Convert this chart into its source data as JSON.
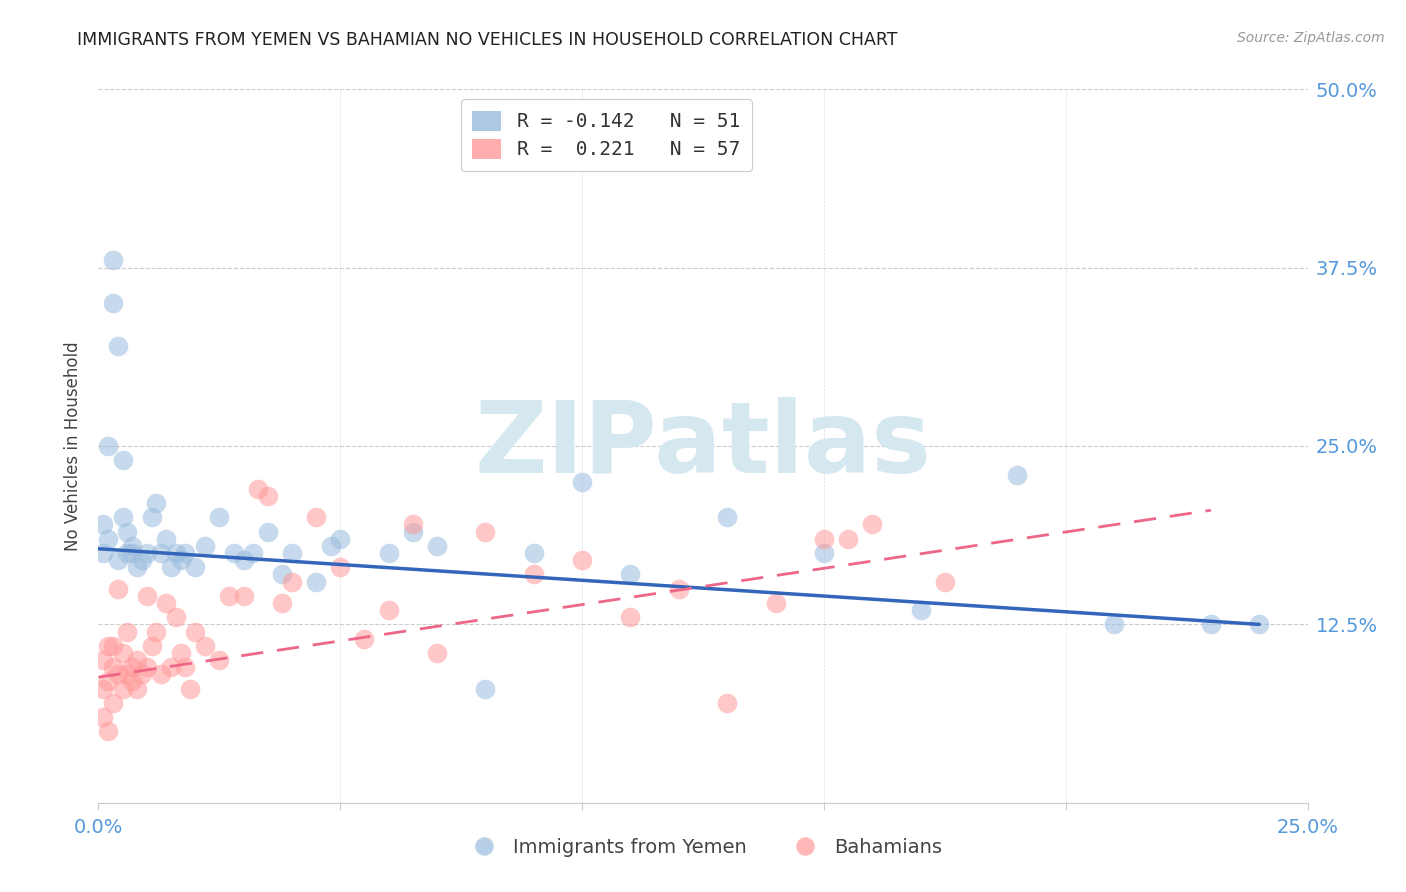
{
  "title": "IMMIGRANTS FROM YEMEN VS BAHAMIAN NO VEHICLES IN HOUSEHOLD CORRELATION CHART",
  "source": "Source: ZipAtlas.com",
  "ylabel": "No Vehicles in Household",
  "legend_label1": "Immigrants from Yemen",
  "legend_label2": "Bahamians",
  "r1": -0.142,
  "n1": 51,
  "r2": 0.221,
  "n2": 57,
  "xlim": [
    0.0,
    0.25
  ],
  "ylim": [
    0.0,
    0.5
  ],
  "x_ticks": [
    0.0,
    0.05,
    0.1,
    0.15,
    0.2,
    0.25
  ],
  "x_tick_labels": [
    "0.0%",
    "",
    "",
    "",
    "",
    "25.0%"
  ],
  "y_ticks": [
    0.0,
    0.125,
    0.25,
    0.375,
    0.5
  ],
  "y_tick_labels": [
    "",
    "12.5%",
    "25.0%",
    "37.5%",
    "50.0%"
  ],
  "color_blue": "#99BBDD",
  "color_pink": "#FF9999",
  "line_color_blue": "#3366BB",
  "line_color_pink": "#EE6688",
  "watermark": "ZIPatlas",
  "watermark_color": "#D5E8F0",
  "background_color": "#FFFFFF",
  "blue_scatter_x": [
    0.001,
    0.001,
    0.002,
    0.002,
    0.003,
    0.003,
    0.004,
    0.004,
    0.005,
    0.005,
    0.006,
    0.006,
    0.007,
    0.007,
    0.008,
    0.009,
    0.01,
    0.011,
    0.012,
    0.013,
    0.014,
    0.015,
    0.016,
    0.017,
    0.018,
    0.02,
    0.022,
    0.025,
    0.028,
    0.03,
    0.032,
    0.035,
    0.038,
    0.04,
    0.045,
    0.048,
    0.05,
    0.06,
    0.065,
    0.07,
    0.08,
    0.09,
    0.1,
    0.11,
    0.13,
    0.15,
    0.17,
    0.19,
    0.21,
    0.23,
    0.24
  ],
  "blue_scatter_y": [
    0.175,
    0.195,
    0.185,
    0.25,
    0.35,
    0.38,
    0.32,
    0.17,
    0.24,
    0.2,
    0.175,
    0.19,
    0.18,
    0.175,
    0.165,
    0.17,
    0.175,
    0.2,
    0.21,
    0.175,
    0.185,
    0.165,
    0.175,
    0.17,
    0.175,
    0.165,
    0.18,
    0.2,
    0.175,
    0.17,
    0.175,
    0.19,
    0.16,
    0.175,
    0.155,
    0.18,
    0.185,
    0.175,
    0.19,
    0.18,
    0.08,
    0.175,
    0.225,
    0.16,
    0.2,
    0.175,
    0.135,
    0.23,
    0.125,
    0.125,
    0.125
  ],
  "pink_scatter_x": [
    0.001,
    0.001,
    0.001,
    0.002,
    0.002,
    0.002,
    0.003,
    0.003,
    0.003,
    0.004,
    0.004,
    0.005,
    0.005,
    0.006,
    0.006,
    0.007,
    0.007,
    0.008,
    0.008,
    0.009,
    0.01,
    0.01,
    0.011,
    0.012,
    0.013,
    0.014,
    0.015,
    0.016,
    0.017,
    0.018,
    0.019,
    0.02,
    0.022,
    0.025,
    0.027,
    0.03,
    0.033,
    0.035,
    0.038,
    0.04,
    0.045,
    0.05,
    0.055,
    0.06,
    0.065,
    0.07,
    0.08,
    0.09,
    0.1,
    0.11,
    0.12,
    0.13,
    0.14,
    0.15,
    0.155,
    0.16,
    0.175
  ],
  "pink_scatter_y": [
    0.1,
    0.08,
    0.06,
    0.11,
    0.085,
    0.05,
    0.095,
    0.11,
    0.07,
    0.09,
    0.15,
    0.105,
    0.08,
    0.09,
    0.12,
    0.085,
    0.095,
    0.1,
    0.08,
    0.09,
    0.095,
    0.145,
    0.11,
    0.12,
    0.09,
    0.14,
    0.095,
    0.13,
    0.105,
    0.095,
    0.08,
    0.12,
    0.11,
    0.1,
    0.145,
    0.145,
    0.22,
    0.215,
    0.14,
    0.155,
    0.2,
    0.165,
    0.115,
    0.135,
    0.195,
    0.105,
    0.19,
    0.16,
    0.17,
    0.13,
    0.15,
    0.07,
    0.14,
    0.185,
    0.185,
    0.195,
    0.155
  ]
}
